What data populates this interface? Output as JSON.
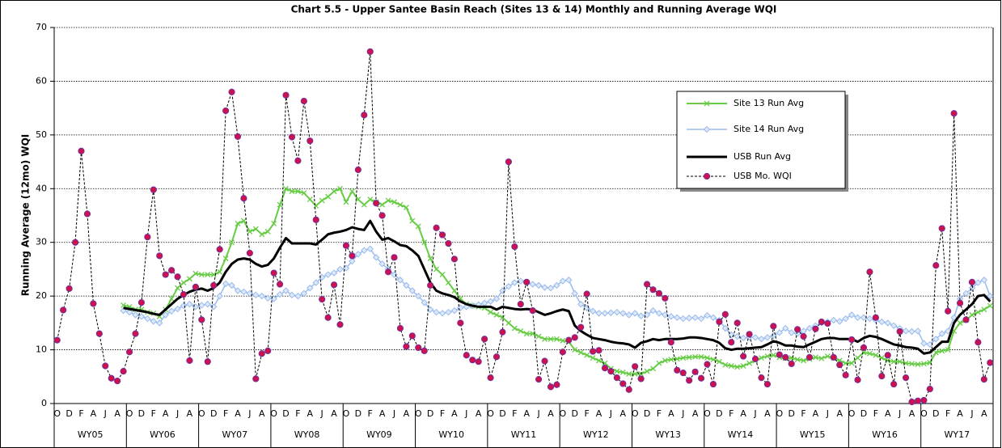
{
  "chart_data": {
    "type": "line",
    "title": "Chart 5.5 - Upper Santee Basin Reach (Sites 13 & 14) Monthly and Running Average WQI",
    "y_label": "Running Average (12mo) WQI",
    "categories": [
      "O",
      null,
      "D",
      null,
      "F",
      null,
      "A",
      null,
      "J",
      null,
      "A",
      null,
      "O",
      null,
      "D",
      null,
      "F",
      null,
      "A",
      null,
      "J",
      null,
      "A",
      null,
      "O",
      null,
      "D",
      null,
      "F",
      null,
      "A",
      null,
      "J",
      null,
      "A",
      null,
      "O",
      null,
      "D",
      null,
      "F",
      null,
      "A",
      null,
      "J",
      null,
      "A",
      null,
      "O",
      null,
      "D",
      null,
      "F",
      null,
      "A",
      null,
      "J",
      null,
      "A",
      null,
      "O",
      null,
      "D",
      null,
      "F",
      null,
      "A",
      null,
      "J",
      null,
      "A",
      null,
      "O",
      null,
      "D",
      null,
      "F",
      null,
      "A",
      null,
      "J",
      null,
      "A",
      null,
      "O",
      null,
      "D",
      null,
      "F",
      null,
      "A",
      null,
      "J",
      null,
      "A",
      null,
      "O",
      null,
      "D",
      null,
      "F",
      null,
      "A",
      null,
      "J",
      null,
      "A",
      null,
      "O",
      null,
      "D",
      null,
      "F",
      null,
      "A",
      null,
      "J",
      null,
      "A",
      null,
      "O",
      null,
      "D",
      null,
      "F",
      null,
      "A",
      null,
      "J",
      null,
      "A",
      null,
      "O",
      null,
      "D",
      null,
      "F",
      null,
      "A",
      null,
      "J",
      null,
      "A",
      null,
      "O",
      null,
      "D",
      null,
      "F",
      null,
      "A",
      null,
      "J",
      null,
      "A",
      null
    ],
    "groups": [
      "WY05",
      "WY06",
      "WY07",
      "WY08",
      "WY09",
      "WY10",
      "WY11",
      "WY12",
      "WY13",
      "WY14",
      "WY15",
      "WY16",
      "WY17"
    ],
    "ylim": [
      0,
      70
    ],
    "yticks": [
      0,
      10,
      20,
      30,
      40,
      50,
      60,
      70
    ],
    "grid": true,
    "legend": "upper right",
    "series": [
      {
        "name": "Site 13 Run Avg",
        "color": "#66cc44",
        "marker": "x",
        "dashed": false,
        "line_width": 2,
        "values": [
          null,
          null,
          null,
          null,
          null,
          null,
          null,
          null,
          null,
          null,
          null,
          18.3,
          18.0,
          17.5,
          17.5,
          17.0,
          16.8,
          16.2,
          17.5,
          19.5,
          21.5,
          22.5,
          23.2,
          24.2,
          24.0,
          24.0,
          24.0,
          24.5,
          27.0,
          30.0,
          33.5,
          34.0,
          32.0,
          32.5,
          31.5,
          32.0,
          33.5,
          37.0,
          40.0,
          39.5,
          39.5,
          39.2,
          38.0,
          36.8,
          37.8,
          38.5,
          39.5,
          40.0,
          37.5,
          39.5,
          38.0,
          37.0,
          38.0,
          37.5,
          37.0,
          37.8,
          37.5,
          37.0,
          36.5,
          34.0,
          33.0,
          30.0,
          27.0,
          25.0,
          24.0,
          22.5,
          21.0,
          19.5,
          18.5,
          18.2,
          18.0,
          17.8,
          17.0,
          16.5,
          16.0,
          15.0,
          14.0,
          13.5,
          13.0,
          13.0,
          12.5,
          12.0,
          12.0,
          12.0,
          11.7,
          11.5,
          10.0,
          9.5,
          9.0,
          8.5,
          8.0,
          7.5,
          6.5,
          6.0,
          5.8,
          5.5,
          5.5,
          5.5,
          6.0,
          6.5,
          7.5,
          8.0,
          8.2,
          8.3,
          8.5,
          8.6,
          8.7,
          8.7,
          8.5,
          8.2,
          7.8,
          7.2,
          7.0,
          6.8,
          7.0,
          7.5,
          8.0,
          8.5,
          8.8,
          9.0,
          8.6,
          8.4,
          8.5,
          8.2,
          8.0,
          8.3,
          8.6,
          8.4,
          8.8,
          8.5,
          8.0,
          7.5,
          7.5,
          8.5,
          9.5,
          9.3,
          9.0,
          8.5,
          8.0,
          7.8,
          7.8,
          7.5,
          7.4,
          7.3,
          7.4,
          7.6,
          9.5,
          9.8,
          10.0,
          13.5,
          15.0,
          15.5,
          16.5,
          17.0,
          17.5,
          18.2
        ]
      },
      {
        "name": "Site 14 Run Avg",
        "color": "#99bbee",
        "marker": "diamond",
        "dashed": false,
        "line_width": 1.5,
        "values": [
          null,
          null,
          null,
          null,
          null,
          null,
          null,
          null,
          null,
          null,
          null,
          17.3,
          17.0,
          16.5,
          16.2,
          15.8,
          15.3,
          15.0,
          16.5,
          17.2,
          17.6,
          18.2,
          18.5,
          18.0,
          18.3,
          18.5,
          18.0,
          20.0,
          22.3,
          22.0,
          21.0,
          20.8,
          20.5,
          20.2,
          20.0,
          19.6,
          19.5,
          20.3,
          21.0,
          20.2,
          20.0,
          20.5,
          21.5,
          22.5,
          23.5,
          24.0,
          24.3,
          25.0,
          25.2,
          26.5,
          27.8,
          28.5,
          28.8,
          27.2,
          26.0,
          25.0,
          24.0,
          23.0,
          22.0,
          21.0,
          20.0,
          18.8,
          17.5,
          17.0,
          16.8,
          17.0,
          17.3,
          17.8,
          18.0,
          18.2,
          18.4,
          18.7,
          19.0,
          19.5,
          21.0,
          21.8,
          22.5,
          22.8,
          22.5,
          22.2,
          22.0,
          21.6,
          21.5,
          22.0,
          22.8,
          23.0,
          20.5,
          18.5,
          17.8,
          17.2,
          16.8,
          16.8,
          16.9,
          17.0,
          16.8,
          16.5,
          16.8,
          16.3,
          16.5,
          17.3,
          16.8,
          16.5,
          16.2,
          16.0,
          15.8,
          15.9,
          16.0,
          15.8,
          16.4,
          16.0,
          15.5,
          14.0,
          12.8,
          12.5,
          12.2,
          12.3,
          12.3,
          12.0,
          12.3,
          12.6,
          13.2,
          14.0,
          13.2,
          13.0,
          13.5,
          14.0,
          14.5,
          15.0,
          15.2,
          15.5,
          15.3,
          15.8,
          16.5,
          16.0,
          16.0,
          15.8,
          15.5,
          15.2,
          15.0,
          14.5,
          14.0,
          13.5,
          13.4,
          13.5,
          11.2,
          11.0,
          12.0,
          13.0,
          13.5,
          16.0,
          19.5,
          20.5,
          21.5,
          22.5,
          23.0,
          20.0
        ]
      },
      {
        "name": "USB Run Avg",
        "color": "#000000",
        "marker": "none",
        "dashed": false,
        "line_width": 3,
        "values": [
          null,
          null,
          null,
          null,
          null,
          null,
          null,
          null,
          null,
          null,
          null,
          17.8,
          17.6,
          17.4,
          17.2,
          17.0,
          16.7,
          16.5,
          17.5,
          18.5,
          19.5,
          20.2,
          20.8,
          21.2,
          21.4,
          21.0,
          21.5,
          22.5,
          24.5,
          26.0,
          26.8,
          27.0,
          26.8,
          26.0,
          25.5,
          25.8,
          27.0,
          29.0,
          30.8,
          29.8,
          29.8,
          29.8,
          29.8,
          29.6,
          30.5,
          31.5,
          31.8,
          32.0,
          32.3,
          32.8,
          32.5,
          32.3,
          34.0,
          32.0,
          30.5,
          30.8,
          30.2,
          29.5,
          29.3,
          28.5,
          27.5,
          25.0,
          22.5,
          21.0,
          20.5,
          20.2,
          19.8,
          19.0,
          18.5,
          18.2,
          18.0,
          18.0,
          18.0,
          17.5,
          18.0,
          17.8,
          17.6,
          17.5,
          17.6,
          17.5,
          17.0,
          16.5,
          16.8,
          17.2,
          17.5,
          17.2,
          14.5,
          13.5,
          12.8,
          12.2,
          12.0,
          11.8,
          11.5,
          11.3,
          11.2,
          11.0,
          10.4,
          11.3,
          11.6,
          12.0,
          11.8,
          12.0,
          12.0,
          12.0,
          12.1,
          12.3,
          12.3,
          12.2,
          12.0,
          11.8,
          11.3,
          10.3,
          10.0,
          10.2,
          10.2,
          10.3,
          10.4,
          10.5,
          11.0,
          11.6,
          11.3,
          10.8,
          10.8,
          10.6,
          10.5,
          11.0,
          11.5,
          12.0,
          12.2,
          12.2,
          12.0,
          12.0,
          12.0,
          11.5,
          12.2,
          12.6,
          12.4,
          12.0,
          11.5,
          11.0,
          10.8,
          10.5,
          10.4,
          10.2,
          9.3,
          9.5,
          10.5,
          11.5,
          11.5,
          15.0,
          16.5,
          17.5,
          18.5,
          20.0,
          20.2,
          19.0
        ]
      },
      {
        "name": "USB Mo. WQI",
        "color": "#000000",
        "marker": "circle",
        "marker_color": "#d0104a",
        "dashed": true,
        "line_width": 1,
        "values": [
          11.8,
          17.4,
          21.4,
          30.0,
          47.0,
          35.3,
          18.6,
          13.0,
          7.0,
          4.7,
          4.2,
          6.0,
          9.6,
          13.0,
          18.8,
          31.0,
          39.8,
          27.5,
          24.0,
          24.8,
          23.6,
          20.3,
          8.0,
          21.7,
          15.6,
          7.8,
          22.0,
          28.7,
          54.5,
          58.0,
          49.7,
          38.2,
          28.0,
          4.6,
          9.3,
          9.8,
          24.3,
          22.2,
          57.4,
          49.6,
          45.2,
          56.3,
          48.9,
          34.2,
          19.4,
          16.0,
          22.1,
          14.7,
          29.4,
          27.5,
          43.5,
          53.7,
          65.5,
          37.3,
          35.0,
          24.5,
          27.2,
          14.0,
          10.6,
          12.6,
          10.4,
          9.8,
          22.0,
          32.7,
          31.4,
          29.8,
          26.9,
          15.0,
          9.0,
          8.1,
          7.8,
          12.0,
          4.8,
          8.7,
          13.3,
          45.0,
          29.2,
          18.5,
          22.6,
          17.3,
          4.5,
          7.9,
          3.1,
          3.5,
          9.6,
          11.8,
          12.3,
          14.2,
          20.4,
          9.7,
          9.9,
          6.6,
          6.0,
          4.8,
          3.7,
          2.6,
          6.9,
          4.6,
          22.2,
          21.2,
          20.5,
          19.6,
          11.4,
          6.2,
          5.7,
          4.3,
          5.9,
          4.7,
          7.3,
          3.6,
          15.2,
          16.6,
          11.4,
          15.0,
          8.8,
          12.9,
          8.3,
          4.8,
          3.6,
          14.4,
          9.1,
          8.6,
          7.4,
          13.8,
          12.5,
          8.6,
          13.9,
          15.2,
          14.9,
          8.6,
          7.2,
          5.3,
          11.9,
          4.4,
          10.4,
          24.5,
          16.0,
          5.1,
          9.0,
          3.6,
          13.4,
          4.8,
          0.3,
          0.5,
          0.6,
          2.7,
          25.7,
          32.6,
          17.2,
          54.0,
          18.7,
          15.6,
          22.6,
          11.4,
          4.5,
          7.6
        ]
      }
    ]
  }
}
